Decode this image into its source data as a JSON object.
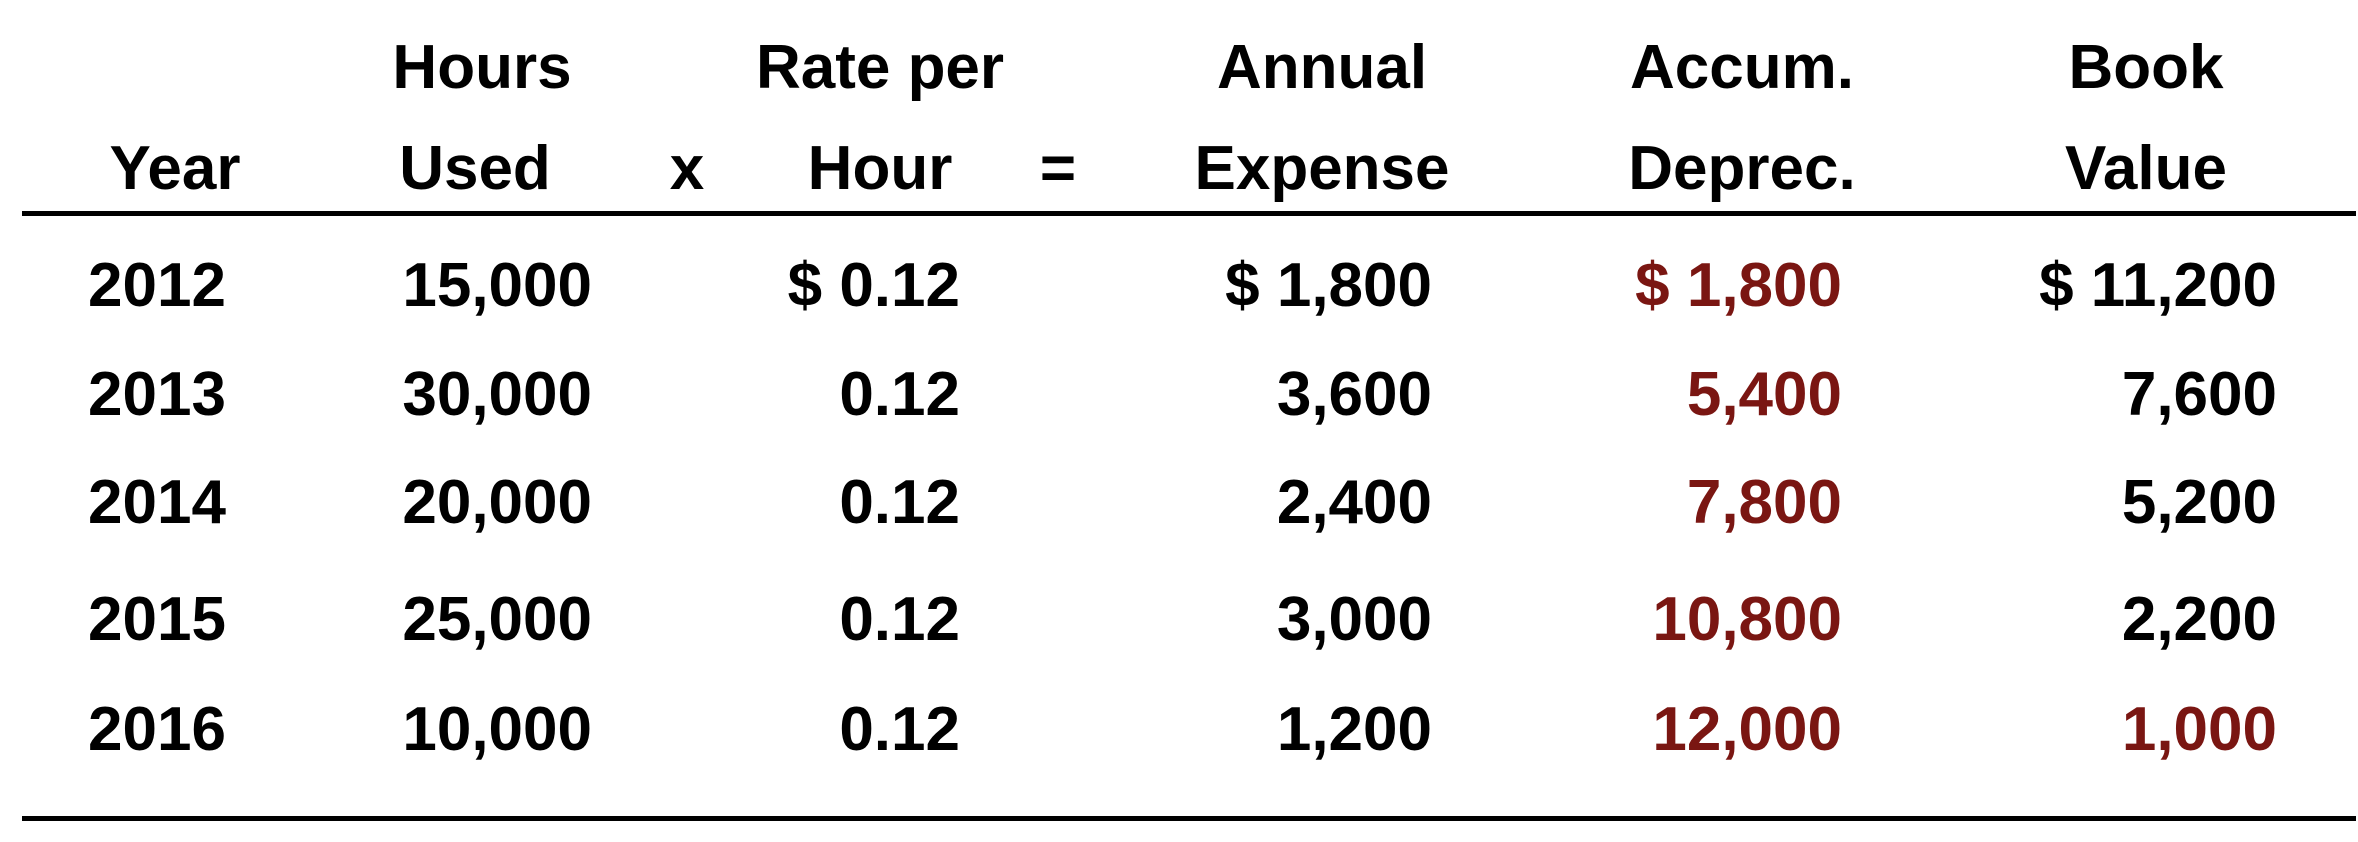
{
  "colors": {
    "text": "#000000",
    "accum_highlight": "#7a1612"
  },
  "header": {
    "hours_l1": "Hours",
    "hours_l2": "Used",
    "times": "x",
    "rate_l1": "Rate per",
    "rate_l2": "Hour",
    "equals": "=",
    "annual_l1": "Annual",
    "annual_l2": "Expense",
    "accum_l1": "Accum.",
    "accum_l2": "Deprec.",
    "book_l1": "Book",
    "book_l2": "Value",
    "year": "Year"
  },
  "rows": [
    {
      "year": "2012",
      "hours": "15,000",
      "rate": "$ 0.12",
      "annual": "$ 1,800",
      "accum": "$ 1,800",
      "book": "$ 11,200",
      "book_highlight": false
    },
    {
      "year": "2013",
      "hours": "30,000",
      "rate": "0.12",
      "annual": "3,600",
      "accum": "5,400",
      "book": "7,600",
      "book_highlight": false
    },
    {
      "year": "2014",
      "hours": "20,000",
      "rate": "0.12",
      "annual": "2,400",
      "accum": "7,800",
      "book": "5,200",
      "book_highlight": false
    },
    {
      "year": "2015",
      "hours": "25,000",
      "rate": "0.12",
      "annual": "3,000",
      "accum": "10,800",
      "book": "2,200",
      "book_highlight": false
    },
    {
      "year": "2016",
      "hours": "10,000",
      "rate": "0.12",
      "annual": "1,200",
      "accum": "12,000",
      "book": "1,000",
      "book_highlight": true
    }
  ]
}
